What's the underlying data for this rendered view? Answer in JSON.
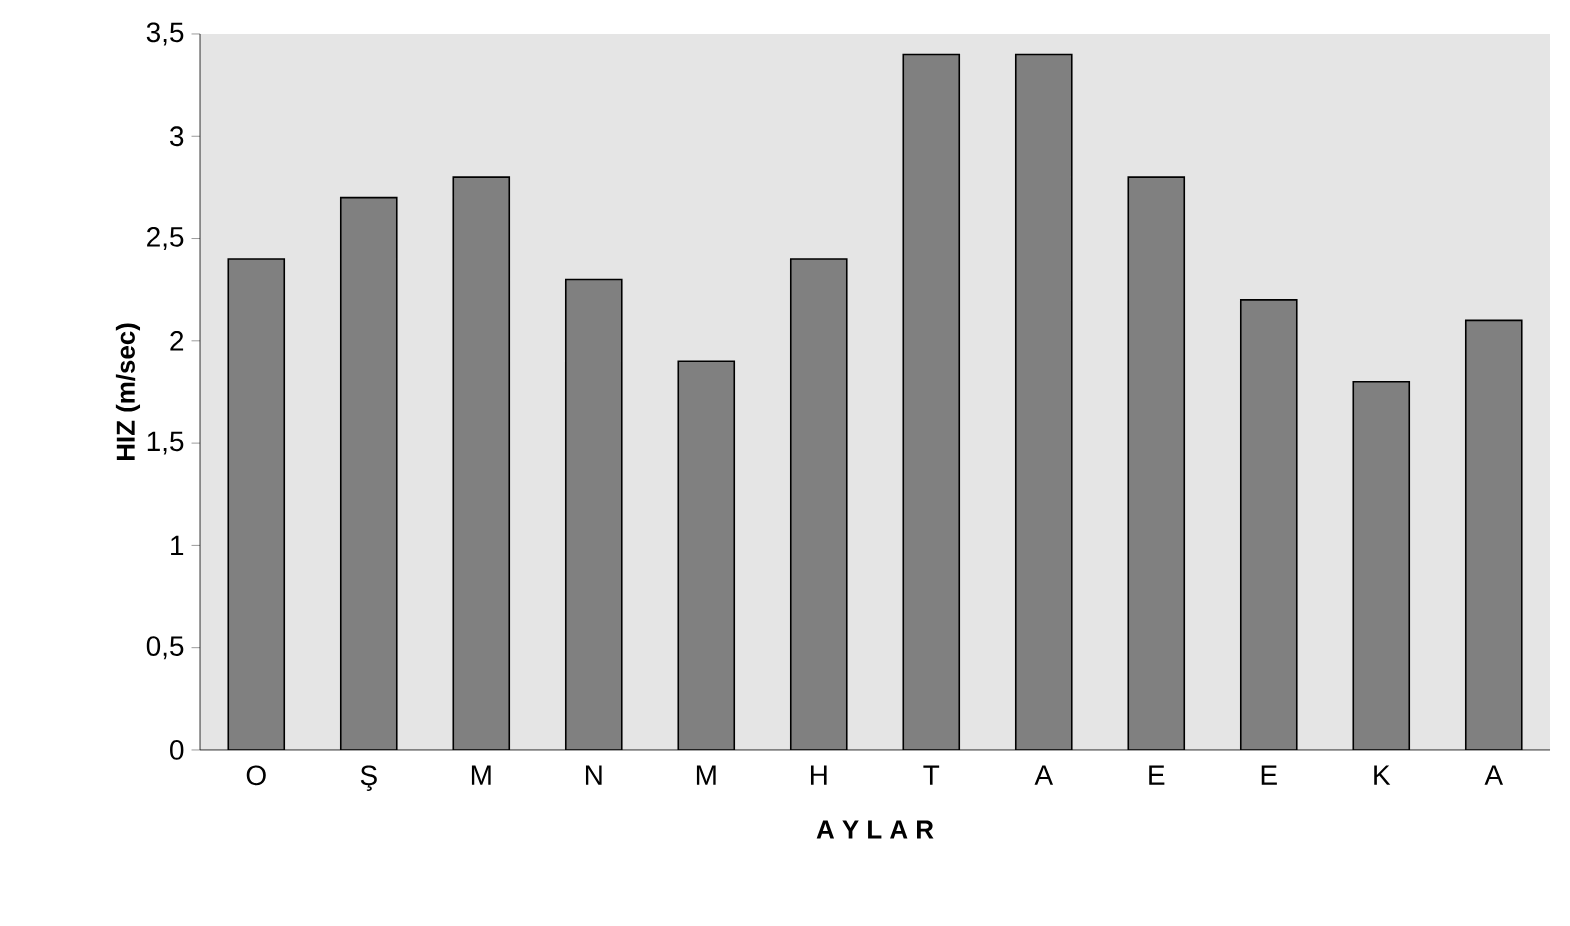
{
  "chart_data": {
    "type": "bar",
    "xlabel": "A Y L A R",
    "ylabel": "HIZ (m/sec)",
    "categories": [
      "O",
      "Ş",
      "M",
      "N",
      "M",
      "H",
      "T",
      "A",
      "E",
      "E",
      "K",
      "A"
    ],
    "values": [
      2.4,
      2.7,
      2.8,
      2.3,
      1.9,
      2.4,
      3.4,
      3.4,
      2.8,
      2.2,
      1.8,
      2.1
    ],
    "color": "#808080",
    "ylim": [
      0,
      3.5
    ],
    "yticks": [
      0,
      {
        "value": 0.5,
        "label": "0,5"
      },
      1,
      {
        "value": 1.5,
        "label": "1,5"
      },
      2,
      {
        "value": 2.5,
        "label": "2,5"
      },
      3,
      {
        "value": 3.5,
        "label": "3,5"
      }
    ],
    "grid": false
  }
}
